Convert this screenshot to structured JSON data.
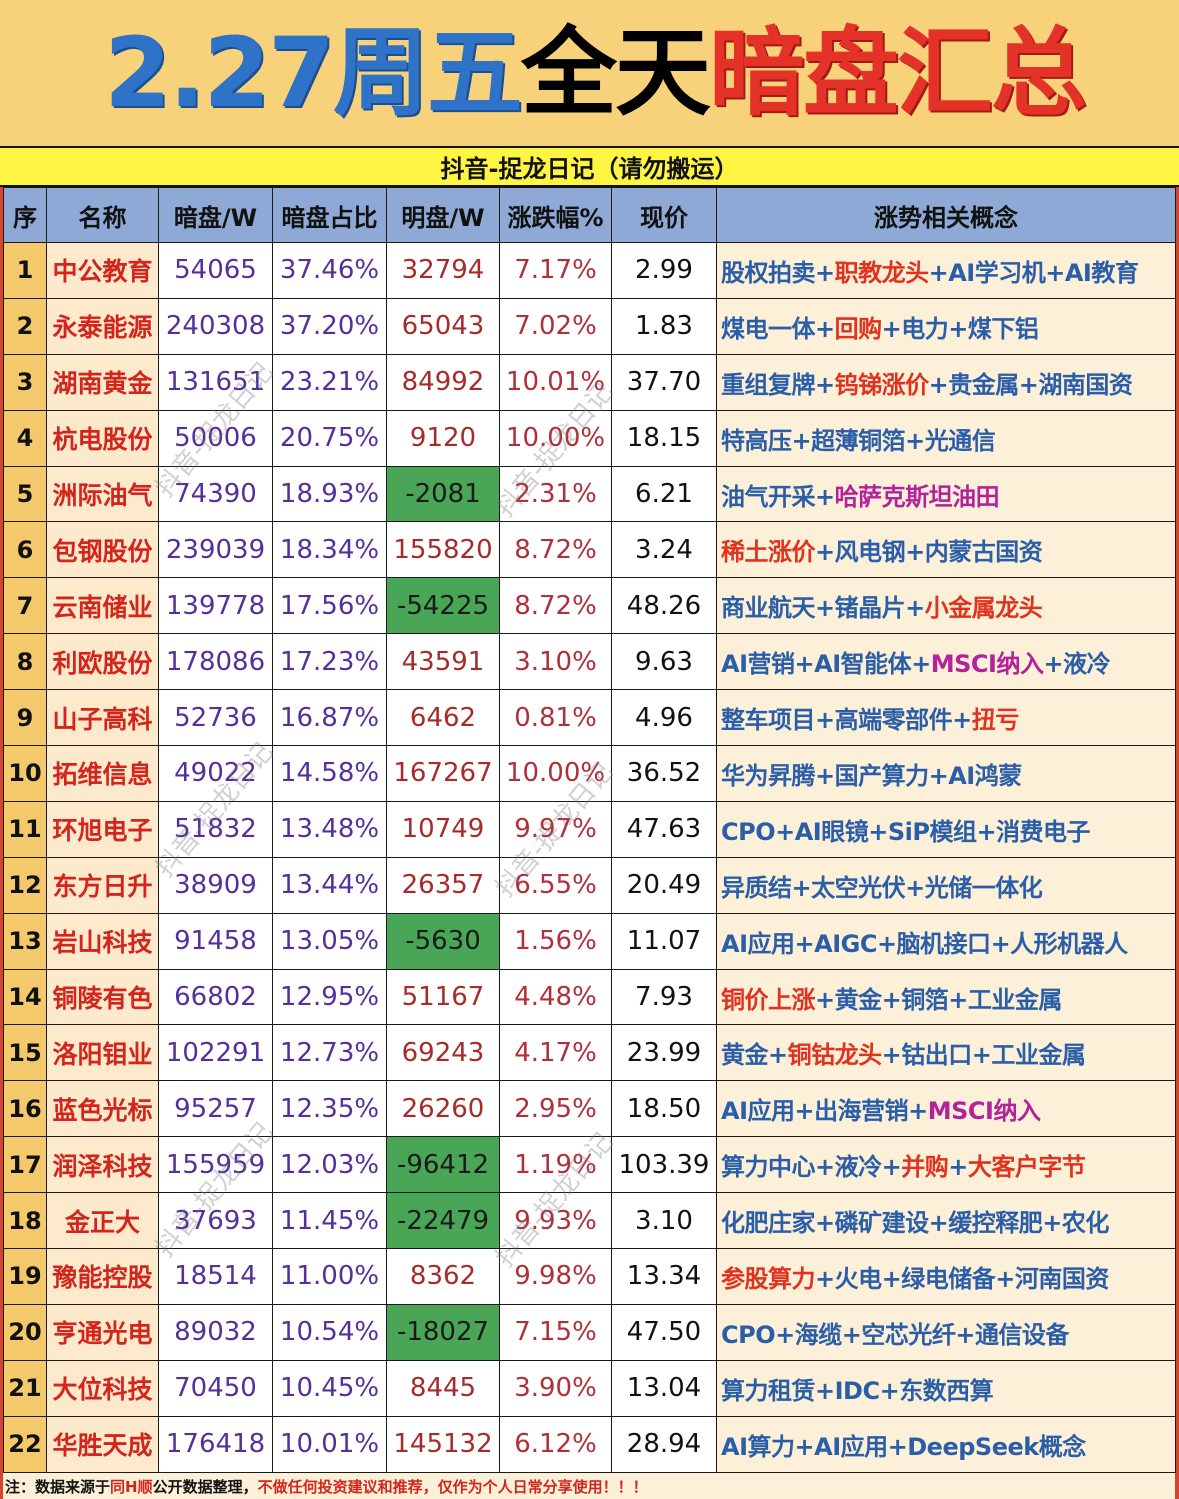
{
  "title": {
    "date_weekday": "2.27周五",
    "scope": "全天",
    "subject": "暗盘汇总"
  },
  "subtitle": "抖音-捉龙日记（请勿搬运）",
  "columns": [
    "序",
    "名称",
    "暗盘/W",
    "暗盘占比",
    "明盘/W",
    "涨跌幅%",
    "现价",
    "涨势相关概念"
  ],
  "rows": [
    {
      "seq": "1",
      "name": "中公教育",
      "dark": "54065",
      "ratio": "37.46%",
      "visible": "32794",
      "visible_negative": false,
      "change": "7.17%",
      "price": "2.99",
      "concepts": [
        {
          "text": "股权拍卖",
          "color": "blue"
        },
        {
          "text": "职教龙头",
          "color": "red"
        },
        {
          "text": "AI学习机",
          "color": "blue"
        },
        {
          "text": "AI教育",
          "color": "blue"
        }
      ]
    },
    {
      "seq": "2",
      "name": "永泰能源",
      "dark": "240308",
      "ratio": "37.20%",
      "visible": "65043",
      "visible_negative": false,
      "change": "7.02%",
      "price": "1.83",
      "concepts": [
        {
          "text": "煤电一体",
          "color": "blue"
        },
        {
          "text": "回购",
          "color": "red"
        },
        {
          "text": "电力",
          "color": "blue"
        },
        {
          "text": "煤下铝",
          "color": "blue"
        }
      ]
    },
    {
      "seq": "3",
      "name": "湖南黄金",
      "dark": "131651",
      "ratio": "23.21%",
      "visible": "84992",
      "visible_negative": false,
      "change": "10.01%",
      "price": "37.70",
      "concepts": [
        {
          "text": "重组复牌",
          "color": "blue"
        },
        {
          "text": "钨锑涨价",
          "color": "red"
        },
        {
          "text": "贵金属",
          "color": "blue"
        },
        {
          "text": "湖南国资",
          "color": "blue"
        }
      ]
    },
    {
      "seq": "4",
      "name": "杭电股份",
      "dark": "50006",
      "ratio": "20.75%",
      "visible": "9120",
      "visible_negative": false,
      "change": "10.00%",
      "price": "18.15",
      "concepts": [
        {
          "text": "特高压",
          "color": "blue"
        },
        {
          "text": "超薄铜箔",
          "color": "blue"
        },
        {
          "text": "光通信",
          "color": "blue"
        }
      ]
    },
    {
      "seq": "5",
      "name": "洲际油气",
      "dark": "74390",
      "ratio": "18.93%",
      "visible": "-2081",
      "visible_negative": true,
      "change": "2.31%",
      "price": "6.21",
      "concepts": [
        {
          "text": "油气开采",
          "color": "blue"
        },
        {
          "text": "哈萨克斯坦油田",
          "color": "magenta"
        }
      ]
    },
    {
      "seq": "6",
      "name": "包钢股份",
      "dark": "239039",
      "ratio": "18.34%",
      "visible": "155820",
      "visible_negative": false,
      "change": "8.72%",
      "price": "3.24",
      "concepts": [
        {
          "text": "稀土涨价",
          "color": "red"
        },
        {
          "text": "风电钢",
          "color": "blue"
        },
        {
          "text": "内蒙古国资",
          "color": "blue"
        }
      ]
    },
    {
      "seq": "7",
      "name": "云南储业",
      "dark": "139778",
      "ratio": "17.56%",
      "visible": "-54225",
      "visible_negative": true,
      "change": "8.72%",
      "price": "48.26",
      "concepts": [
        {
          "text": "商业航天",
          "color": "blue"
        },
        {
          "text": "锗晶片",
          "color": "blue"
        },
        {
          "text": "小金属龙头",
          "color": "red"
        }
      ]
    },
    {
      "seq": "8",
      "name": "利欧股份",
      "dark": "178086",
      "ratio": "17.23%",
      "visible": "43591",
      "visible_negative": false,
      "change": "3.10%",
      "price": "9.63",
      "concepts": [
        {
          "text": "AI营销",
          "color": "blue"
        },
        {
          "text": "AI智能体",
          "color": "blue"
        },
        {
          "text": "MSCI纳入",
          "color": "magenta"
        },
        {
          "text": "液冷",
          "color": "blue"
        }
      ]
    },
    {
      "seq": "9",
      "name": "山子高科",
      "dark": "52736",
      "ratio": "16.87%",
      "visible": "6462",
      "visible_negative": false,
      "change": "0.81%",
      "price": "4.96",
      "concepts": [
        {
          "text": "整车项目",
          "color": "blue"
        },
        {
          "text": "高端零部件",
          "color": "blue"
        },
        {
          "text": "扭亏",
          "color": "red"
        }
      ]
    },
    {
      "seq": "10",
      "name": "拓维信息",
      "dark": "49022",
      "ratio": "14.58%",
      "visible": "167267",
      "visible_negative": false,
      "change": "10.00%",
      "price": "36.52",
      "concepts": [
        {
          "text": "华为昇腾",
          "color": "blue"
        },
        {
          "text": "国产算力",
          "color": "blue"
        },
        {
          "text": "AI鸿蒙",
          "color": "blue"
        }
      ]
    },
    {
      "seq": "11",
      "name": "环旭电子",
      "dark": "51832",
      "ratio": "13.48%",
      "visible": "10749",
      "visible_negative": false,
      "change": "9.97%",
      "price": "47.63",
      "concepts": [
        {
          "text": "CPO",
          "color": "blue"
        },
        {
          "text": "AI眼镜",
          "color": "blue"
        },
        {
          "text": "SiP模组",
          "color": "blue"
        },
        {
          "text": "消费电子",
          "color": "blue"
        }
      ]
    },
    {
      "seq": "12",
      "name": "东方日升",
      "dark": "38909",
      "ratio": "13.44%",
      "visible": "26357",
      "visible_negative": false,
      "change": "6.55%",
      "price": "20.49",
      "concepts": [
        {
          "text": "异质结",
          "color": "blue"
        },
        {
          "text": "太空光伏",
          "color": "blue"
        },
        {
          "text": "光储一体化",
          "color": "blue"
        }
      ]
    },
    {
      "seq": "13",
      "name": "岩山科技",
      "dark": "91458",
      "ratio": "13.05%",
      "visible": "-5630",
      "visible_negative": true,
      "change": "1.56%",
      "price": "11.07",
      "concepts": [
        {
          "text": "AI应用",
          "color": "blue"
        },
        {
          "text": "AIGC",
          "color": "blue"
        },
        {
          "text": "脑机接口",
          "color": "blue"
        },
        {
          "text": "人形机器人",
          "color": "blue"
        }
      ]
    },
    {
      "seq": "14",
      "name": "铜陵有色",
      "dark": "66802",
      "ratio": "12.95%",
      "visible": "51167",
      "visible_negative": false,
      "change": "4.48%",
      "price": "7.93",
      "concepts": [
        {
          "text": "铜价上涨",
          "color": "red"
        },
        {
          "text": "黄金",
          "color": "blue"
        },
        {
          "text": "铜箔",
          "color": "blue"
        },
        {
          "text": "工业金属",
          "color": "blue"
        }
      ]
    },
    {
      "seq": "15",
      "name": "洛阳钼业",
      "dark": "102291",
      "ratio": "12.73%",
      "visible": "69243",
      "visible_negative": false,
      "change": "4.17%",
      "price": "23.99",
      "concepts": [
        {
          "text": "黄金",
          "color": "blue"
        },
        {
          "text": "铜钴龙头",
          "color": "red"
        },
        {
          "text": "钴出口",
          "color": "blue"
        },
        {
          "text": "工业金属",
          "color": "blue"
        }
      ]
    },
    {
      "seq": "16",
      "name": "蓝色光标",
      "dark": "95257",
      "ratio": "12.35%",
      "visible": "26260",
      "visible_negative": false,
      "change": "2.95%",
      "price": "18.50",
      "concepts": [
        {
          "text": "AI应用",
          "color": "blue"
        },
        {
          "text": "出海营销",
          "color": "blue"
        },
        {
          "text": "MSCI纳入",
          "color": "magenta"
        }
      ]
    },
    {
      "seq": "17",
      "name": "润泽科技",
      "dark": "155959",
      "ratio": "12.03%",
      "visible": "-96412",
      "visible_negative": true,
      "change": "1.19%",
      "price": "103.39",
      "concepts": [
        {
          "text": "算力中心",
          "color": "blue"
        },
        {
          "text": "液冷",
          "color": "blue"
        },
        {
          "text": "并购",
          "color": "red"
        },
        {
          "text": "大客户字节",
          "color": "red"
        }
      ]
    },
    {
      "seq": "18",
      "name": "金正大",
      "dark": "37693",
      "ratio": "11.45%",
      "visible": "-22479",
      "visible_negative": true,
      "change": "9.93%",
      "price": "3.10",
      "concepts": [
        {
          "text": "化肥庄家",
          "color": "blue"
        },
        {
          "text": "磷矿建设",
          "color": "blue"
        },
        {
          "text": "缓控释肥",
          "color": "blue"
        },
        {
          "text": "农化",
          "color": "blue"
        }
      ]
    },
    {
      "seq": "19",
      "name": "豫能控股",
      "dark": "18514",
      "ratio": "11.00%",
      "visible": "8362",
      "visible_negative": false,
      "change": "9.98%",
      "price": "13.34",
      "concepts": [
        {
          "text": "参股算力",
          "color": "red"
        },
        {
          "text": "火电",
          "color": "blue"
        },
        {
          "text": "绿电储备",
          "color": "blue"
        },
        {
          "text": "河南国资",
          "color": "blue"
        }
      ]
    },
    {
      "seq": "20",
      "name": "亨通光电",
      "dark": "89032",
      "ratio": "10.54%",
      "visible": "-18027",
      "visible_negative": true,
      "change": "7.15%",
      "price": "47.50",
      "concepts": [
        {
          "text": "CPO",
          "color": "blue"
        },
        {
          "text": "海缆",
          "color": "blue"
        },
        {
          "text": "空芯光纤",
          "color": "blue"
        },
        {
          "text": "通信设备",
          "color": "blue"
        }
      ]
    },
    {
      "seq": "21",
      "name": "大位科技",
      "dark": "70450",
      "ratio": "10.45%",
      "visible": "8445",
      "visible_negative": false,
      "change": "3.90%",
      "price": "13.04",
      "concepts": [
        {
          "text": "算力租赁",
          "color": "blue"
        },
        {
          "text": "IDC",
          "color": "blue"
        },
        {
          "text": "东数西算",
          "color": "blue"
        }
      ]
    },
    {
      "seq": "22",
      "name": "华胜天成",
      "dark": "176418",
      "ratio": "10.01%",
      "visible": "145132",
      "visible_negative": false,
      "change": "6.12%",
      "price": "28.94",
      "concepts": [
        {
          "text": "AI算力",
          "color": "blue"
        },
        {
          "text": "AI应用",
          "color": "blue"
        },
        {
          "text": "DeepSeek概念",
          "color": "blue"
        }
      ]
    }
  ],
  "footer": {
    "prefix": "注：数据来源于",
    "source": "同H顺",
    "middle": "公开数据整理，",
    "disclaimer": "不做任何投资建议和推荐，仅作为个人日常分享使用！！！"
  },
  "watermark": "抖音-捉龙日记",
  "colors": {
    "title_blue": "#2e73c8",
    "title_red": "#e53228",
    "header_bg": "#8fa9d6",
    "subtitle_bg": "#fdf542",
    "negative_cell": "#4aa657",
    "concept_blue": "#2b5ea8",
    "concept_red": "#e0321f",
    "concept_magenta": "#b4229b"
  }
}
